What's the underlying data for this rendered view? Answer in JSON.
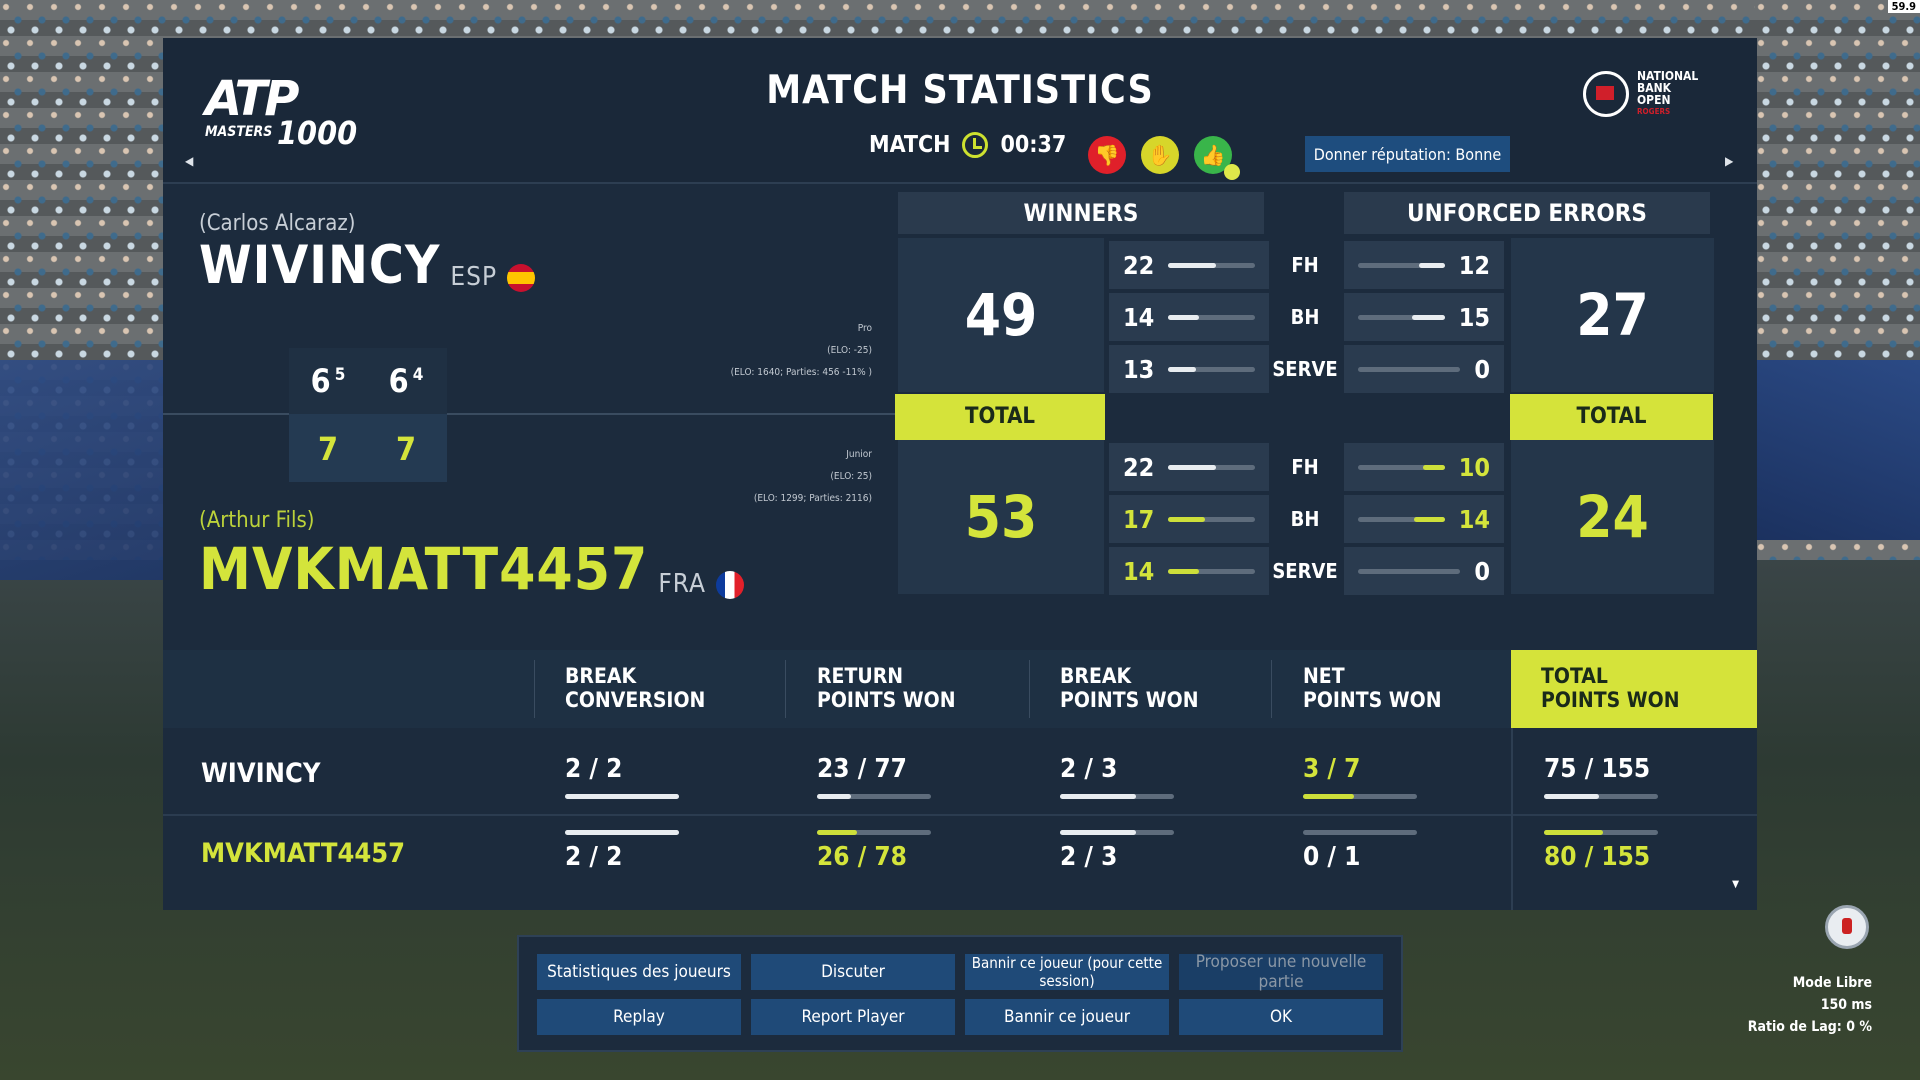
{
  "fps": "59.9",
  "header": {
    "logo": {
      "main": "ATP",
      "sub": "MASTERS",
      "num": "1000"
    },
    "title": "MATCH STATISTICS",
    "match_label": "MATCH",
    "match_time": "00:37",
    "reputation_button": "Donner réputation: Bonne",
    "sponsor": {
      "line1": "NATIONAL",
      "line2": "BANK",
      "line3": "OPEN",
      "by": "ROGERS"
    }
  },
  "players": {
    "p1": {
      "real_name": "(Carlos Alcaraz)",
      "name": "WIVINCY",
      "country": "ESP",
      "level": "Pro",
      "elo_delta": "(ELO: -25)",
      "elo_info": "(ELO: 1640; Parties: 456 -11% )"
    },
    "p2": {
      "real_name": "(Arthur Fils)",
      "name": "MVKMATT4457",
      "country": "FRA",
      "level": "Junior",
      "elo_delta": "(ELO: 25)",
      "elo_info": "(ELO: 1299; Parties: 2116)"
    }
  },
  "score": {
    "p1_sets": [
      "6",
      "6"
    ],
    "p1_tiebreaks": [
      "5",
      "4"
    ],
    "p2_sets": [
      "7",
      "7"
    ]
  },
  "winners": {
    "header": "WINNERS",
    "p1_total": "49",
    "p2_total": "53",
    "total_label": "TOTAL",
    "p1": {
      "fh": "22",
      "bh": "14",
      "serve": "13"
    },
    "p2": {
      "fh": "22",
      "bh": "17",
      "serve": "14"
    }
  },
  "unforced": {
    "header": "UNFORCED ERRORS",
    "p1_total": "27",
    "p2_total": "24",
    "total_label": "TOTAL",
    "p1": {
      "fh": "12",
      "bh": "15",
      "serve": "0"
    },
    "p2": {
      "fh": "10",
      "bh": "14",
      "serve": "0"
    }
  },
  "shot_labels": {
    "fh": "FH",
    "bh": "BH",
    "serve": "SERVE"
  },
  "bottom": {
    "headers": [
      "BREAK\nCONVERSION",
      "RETURN\nPOINTS WON",
      "BREAK\nPOINTS WON",
      "NET\nPOINTS WON",
      "TOTAL\nPOINTS WON"
    ],
    "h": [
      {
        "l1": "BREAK",
        "l2": "CONVERSION"
      },
      {
        "l1": "RETURN",
        "l2": "POINTS WON"
      },
      {
        "l1": "BREAK",
        "l2": "POINTS WON"
      },
      {
        "l1": "NET",
        "l2": "POINTS WON"
      },
      {
        "l1": "TOTAL",
        "l2": "POINTS WON"
      }
    ],
    "p1": [
      "2 / 2",
      "23 / 77",
      "2 / 3",
      "3 / 7",
      "75 / 155"
    ],
    "p2": [
      "2 / 2",
      "26 / 78",
      "2 / 3",
      "0 / 1",
      "80 / 155"
    ],
    "p1_frac": [
      1.0,
      0.3,
      0.67,
      0.43,
      0.48
    ],
    "p2_frac": [
      1.0,
      0.33,
      0.67,
      0.0,
      0.52
    ]
  },
  "buttons": {
    "stats": "Statistiques des joueurs",
    "chat": "Discuter",
    "ban_session": "Bannir ce joueur (pour cette session)",
    "new_game": "Proposer une nouvelle partie",
    "replay": "Replay",
    "report": "Report Player",
    "ban": "Bannir ce joueur",
    "ok": "OK"
  },
  "status": {
    "mode": "Mode Libre",
    "ping": "150 ms",
    "lag": "Ratio de Lag: 0 %"
  },
  "colors": {
    "accent": "#d5e33a",
    "panel": "#1c2b3d",
    "button": "#1f4a78",
    "down": "#e0202a",
    "neutral": "#d7d62a",
    "up": "#39b54a"
  }
}
